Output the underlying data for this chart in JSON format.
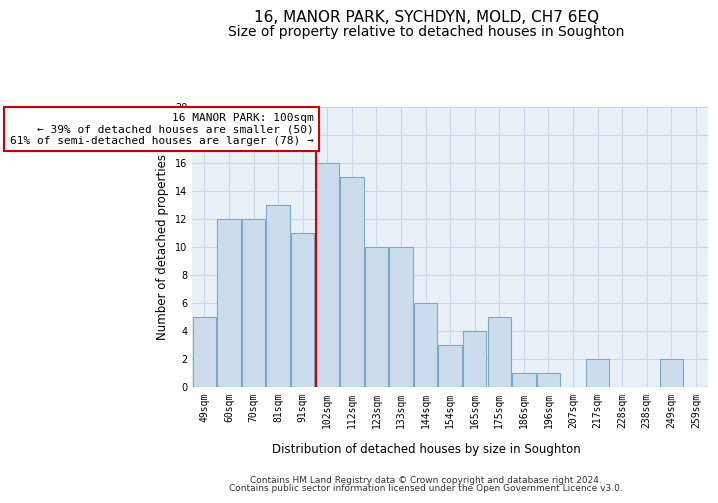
{
  "title": "16, MANOR PARK, SYCHDYN, MOLD, CH7 6EQ",
  "subtitle": "Size of property relative to detached houses in Soughton",
  "xlabel": "Distribution of detached houses by size in Soughton",
  "ylabel": "Number of detached properties",
  "categories": [
    "49sqm",
    "60sqm",
    "70sqm",
    "81sqm",
    "91sqm",
    "102sqm",
    "112sqm",
    "123sqm",
    "133sqm",
    "144sqm",
    "154sqm",
    "165sqm",
    "175sqm",
    "186sqm",
    "196sqm",
    "207sqm",
    "217sqm",
    "228sqm",
    "238sqm",
    "249sqm",
    "259sqm"
  ],
  "values": [
    5,
    12,
    12,
    13,
    11,
    16,
    15,
    10,
    10,
    6,
    3,
    4,
    5,
    1,
    1,
    0,
    2,
    0,
    0,
    2,
    0
  ],
  "bar_color": "#ccdcec",
  "bar_edge_color": "#7aaac8",
  "reference_line_index": 5,
  "reference_line_color": "#cc0000",
  "annotation_text": "16 MANOR PARK: 100sqm\n← 39% of detached houses are smaller (50)\n61% of semi-detached houses are larger (78) →",
  "annotation_box_color": "#ffffff",
  "annotation_box_edge_color": "#cc0000",
  "ylim": [
    0,
    20
  ],
  "yticks": [
    0,
    2,
    4,
    6,
    8,
    10,
    12,
    14,
    16,
    18,
    20
  ],
  "footer_line1": "Contains HM Land Registry data © Crown copyright and database right 2024.",
  "footer_line2": "Contains public sector information licensed under the Open Government Licence v3.0.",
  "background_color": "#ffffff",
  "plot_bg_color": "#e8f0f8",
  "grid_color": "#c8d8e8",
  "title_fontsize": 11,
  "subtitle_fontsize": 10,
  "axis_label_fontsize": 8.5,
  "tick_fontsize": 7,
  "annotation_fontsize": 8,
  "footer_fontsize": 6.5
}
